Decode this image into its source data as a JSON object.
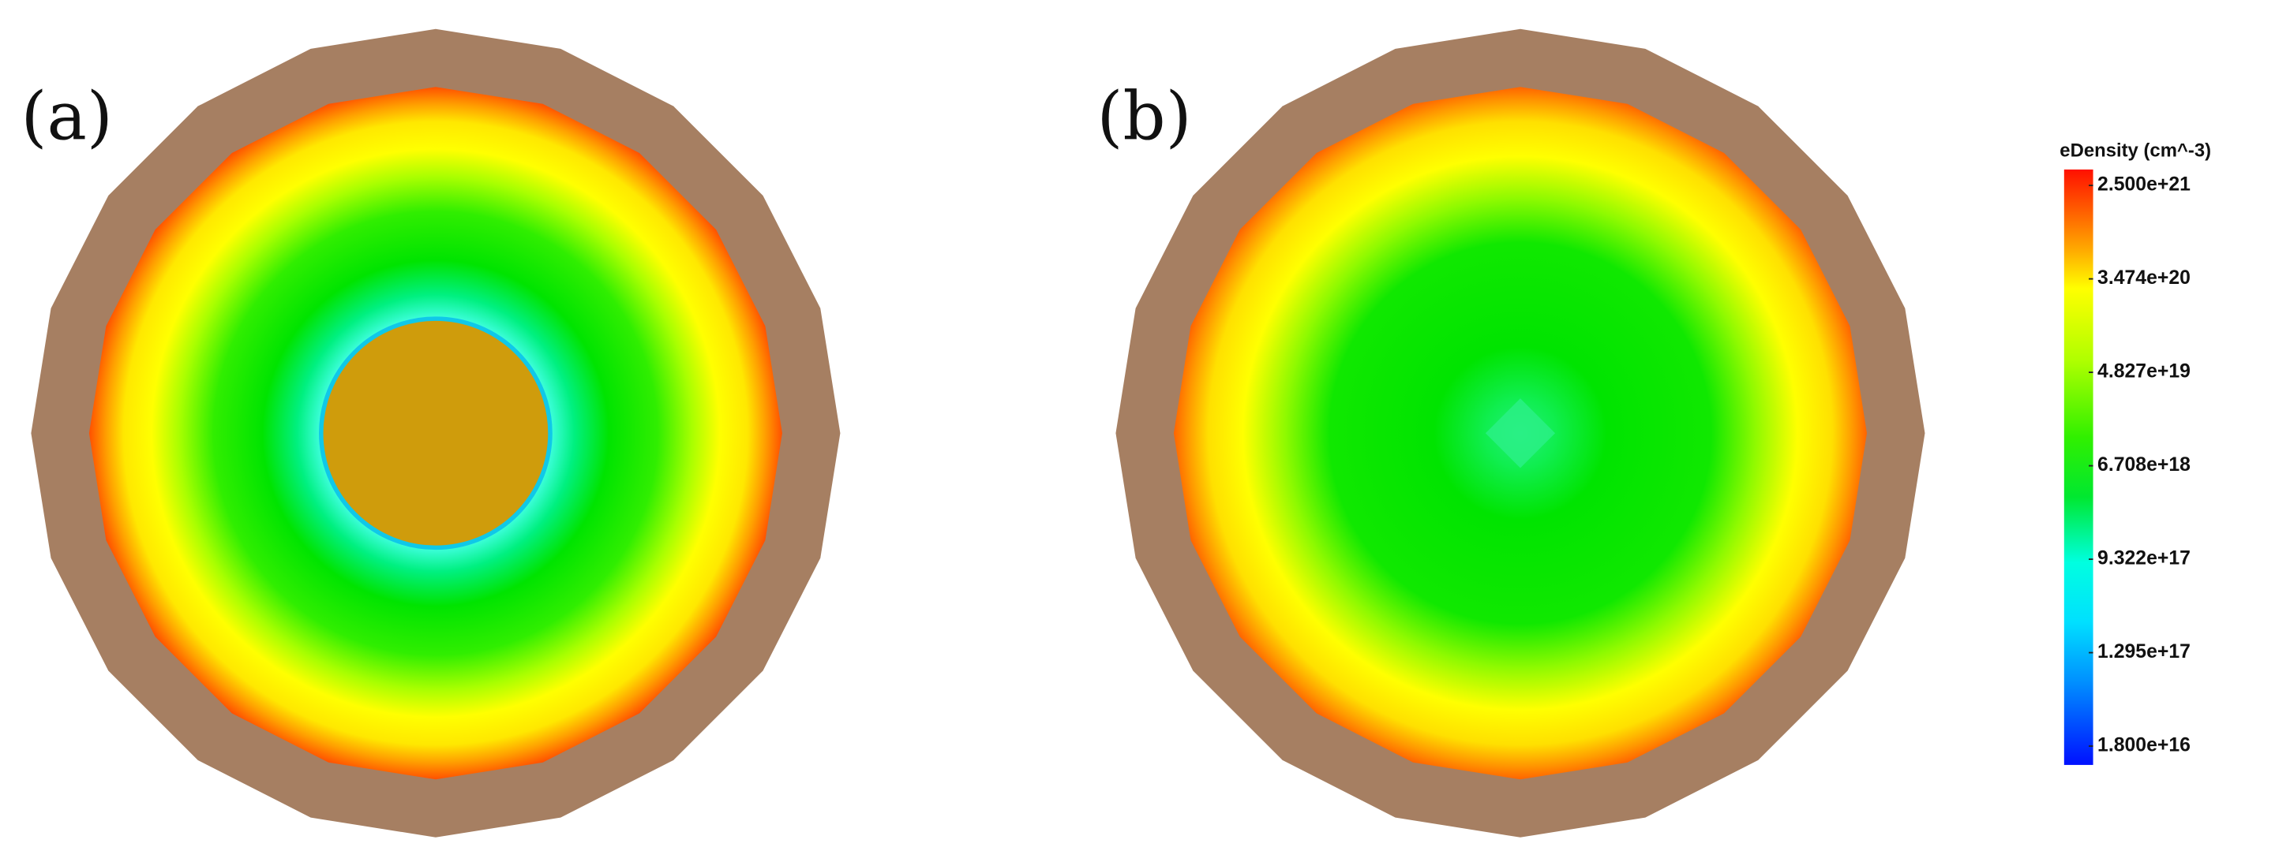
{
  "panels": [
    {
      "label": "(a)"
    },
    {
      "label": "(b)"
    }
  ],
  "colorbar": {
    "title": "eDensity (cm^-3)",
    "ticks": [
      "2.500e+21",
      "3.474e+20",
      "4.827e+19",
      "6.708e+18",
      "9.322e+17",
      "1.295e+17",
      "1.800e+16"
    ]
  }
}
